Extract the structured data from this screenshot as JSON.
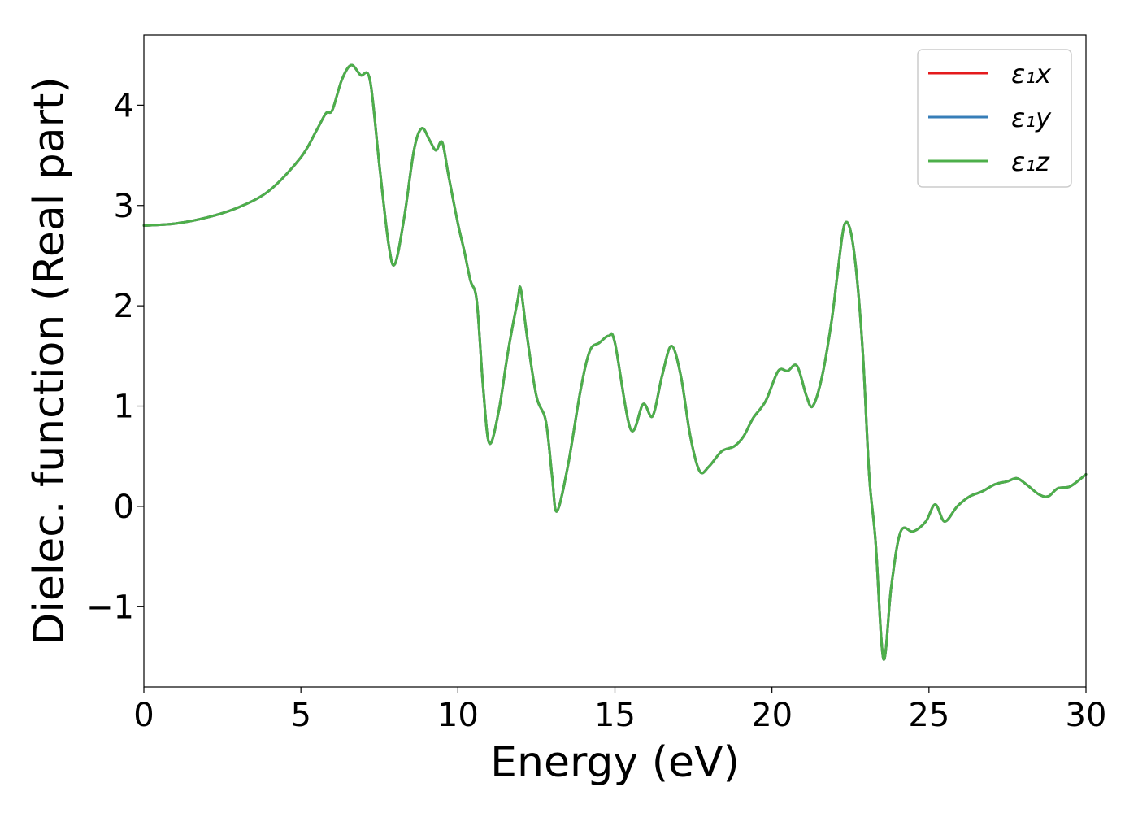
{
  "chart_data": {
    "type": "line",
    "title": "",
    "xlabel": "Energy (eV)",
    "ylabel": "Dielec. function (Real part)",
    "xlim": [
      0,
      30
    ],
    "ylim": [
      -1.8,
      4.7
    ],
    "xticks": [
      0,
      5,
      10,
      15,
      20,
      25,
      30
    ],
    "yticks": [
      -1,
      0,
      1,
      2,
      3,
      4
    ],
    "grid": false,
    "legend_position": "top-right",
    "x": [
      0,
      1,
      2,
      3,
      4,
      5,
      5.5,
      5.8,
      6.0,
      6.3,
      6.6,
      6.9,
      7.2,
      7.5,
      7.8,
      8.0,
      8.3,
      8.6,
      8.85,
      9.1,
      9.3,
      9.5,
      9.7,
      10.0,
      10.2,
      10.4,
      10.6,
      10.8,
      11.0,
      11.3,
      11.6,
      11.9,
      12.0,
      12.2,
      12.5,
      12.8,
      13.0,
      13.15,
      13.5,
      13.9,
      14.2,
      14.5,
      14.8,
      15.0,
      15.5,
      15.9,
      16.2,
      16.5,
      16.8,
      17.1,
      17.4,
      17.7,
      18.0,
      18.4,
      18.8,
      19.1,
      19.4,
      19.8,
      20.2,
      20.5,
      20.8,
      21.1,
      21.3,
      21.6,
      21.9,
      22.1,
      22.3,
      22.5,
      22.7,
      22.9,
      23.1,
      23.3,
      23.55,
      23.8,
      24.1,
      24.5,
      24.9,
      25.2,
      25.5,
      25.9,
      26.3,
      26.7,
      27.1,
      27.5,
      27.8,
      28.1,
      28.5,
      28.8,
      29.1,
      29.5,
      30
    ],
    "series": [
      {
        "name": "ε₁x",
        "color": "#e41a1c",
        "values": [
          2.8,
          2.82,
          2.88,
          2.98,
          3.15,
          3.48,
          3.75,
          3.92,
          3.95,
          4.25,
          4.4,
          4.3,
          4.25,
          3.4,
          2.6,
          2.42,
          2.9,
          3.55,
          3.77,
          3.65,
          3.55,
          3.63,
          3.3,
          2.82,
          2.55,
          2.25,
          2.05,
          1.2,
          0.63,
          0.95,
          1.55,
          2.05,
          2.17,
          1.7,
          1.1,
          0.85,
          0.3,
          -0.05,
          0.4,
          1.15,
          1.55,
          1.63,
          1.7,
          1.63,
          0.77,
          1.02,
          0.9,
          1.3,
          1.6,
          1.3,
          0.7,
          0.35,
          0.4,
          0.55,
          0.6,
          0.7,
          0.88,
          1.05,
          1.35,
          1.35,
          1.4,
          1.1,
          1.0,
          1.3,
          1.85,
          2.35,
          2.8,
          2.75,
          2.3,
          1.5,
          0.3,
          -0.35,
          -1.52,
          -0.8,
          -0.25,
          -0.25,
          -0.15,
          0.02,
          -0.15,
          0.0,
          0.1,
          0.15,
          0.22,
          0.25,
          0.28,
          0.22,
          0.12,
          0.1,
          0.18,
          0.2,
          0.32
        ]
      },
      {
        "name": "ε₁y",
        "color": "#377eb8",
        "values": [
          2.8,
          2.82,
          2.88,
          2.98,
          3.15,
          3.48,
          3.75,
          3.92,
          3.95,
          4.25,
          4.4,
          4.3,
          4.25,
          3.4,
          2.6,
          2.42,
          2.9,
          3.55,
          3.77,
          3.65,
          3.55,
          3.63,
          3.3,
          2.82,
          2.55,
          2.25,
          2.05,
          1.2,
          0.63,
          0.95,
          1.55,
          2.05,
          2.17,
          1.7,
          1.1,
          0.85,
          0.3,
          -0.05,
          0.4,
          1.15,
          1.55,
          1.63,
          1.7,
          1.63,
          0.77,
          1.02,
          0.9,
          1.3,
          1.6,
          1.3,
          0.7,
          0.35,
          0.4,
          0.55,
          0.6,
          0.7,
          0.88,
          1.05,
          1.35,
          1.35,
          1.4,
          1.1,
          1.0,
          1.3,
          1.85,
          2.35,
          2.8,
          2.75,
          2.3,
          1.5,
          0.3,
          -0.35,
          -1.52,
          -0.8,
          -0.25,
          -0.25,
          -0.15,
          0.02,
          -0.15,
          0.0,
          0.1,
          0.15,
          0.22,
          0.25,
          0.28,
          0.22,
          0.12,
          0.1,
          0.18,
          0.2,
          0.32
        ]
      },
      {
        "name": "ε₁z",
        "color": "#4daf4a",
        "values": [
          2.8,
          2.82,
          2.88,
          2.98,
          3.15,
          3.48,
          3.75,
          3.92,
          3.95,
          4.25,
          4.4,
          4.3,
          4.25,
          3.4,
          2.6,
          2.42,
          2.9,
          3.55,
          3.77,
          3.65,
          3.55,
          3.63,
          3.3,
          2.82,
          2.55,
          2.25,
          2.05,
          1.2,
          0.63,
          0.95,
          1.55,
          2.05,
          2.17,
          1.7,
          1.1,
          0.85,
          0.3,
          -0.05,
          0.4,
          1.15,
          1.55,
          1.63,
          1.7,
          1.63,
          0.77,
          1.02,
          0.9,
          1.3,
          1.6,
          1.3,
          0.7,
          0.35,
          0.4,
          0.55,
          0.6,
          0.7,
          0.88,
          1.05,
          1.35,
          1.35,
          1.4,
          1.1,
          1.0,
          1.3,
          1.85,
          2.35,
          2.8,
          2.75,
          2.3,
          1.5,
          0.3,
          -0.35,
          -1.52,
          -0.8,
          -0.25,
          -0.25,
          -0.15,
          0.02,
          -0.15,
          0.0,
          0.1,
          0.15,
          0.22,
          0.25,
          0.28,
          0.22,
          0.12,
          0.1,
          0.18,
          0.2,
          0.32
        ]
      }
    ]
  }
}
